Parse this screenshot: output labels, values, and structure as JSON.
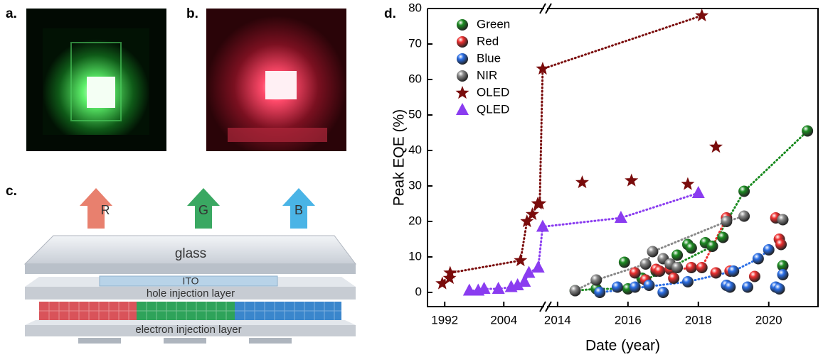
{
  "panel_labels": [
    "a.",
    "b.",
    "c.",
    "d."
  ],
  "diagram": {
    "arrows": [
      "R",
      "G",
      "B"
    ],
    "layers": [
      "glass",
      "ITO",
      "hole injection layer",
      "electron injection layer"
    ]
  },
  "chart_data": {
    "type": "scatter",
    "xlabel": "Date (year)",
    "ylabel": "Peak EQE (%)",
    "xlim": [
      1988.5,
      2021.4
    ],
    "xbreak": [
      2012.2,
      2013.7
    ],
    "xticks": [
      1992,
      2004,
      2014,
      2016,
      2018,
      2020
    ],
    "ylim": [
      -4,
      80
    ],
    "yticks": [
      0,
      10,
      20,
      30,
      40,
      50,
      60,
      70,
      80
    ],
    "legend": "top-left",
    "series": [
      {
        "name": "Green",
        "color": "#1c8c22",
        "marker": "sphere",
        "x": [
          2014.5,
          2015.1,
          2015.9,
          2016,
          2016.4,
          2016.8,
          2017.4,
          2017.7,
          2017.8,
          2018.2,
          2018.4,
          2018.7,
          2019.3,
          2020.4,
          2021.1
        ],
        "values": [
          0.5,
          1,
          8.5,
          1,
          4,
          6,
          10.5,
          13.5,
          12.5,
          14,
          13,
          15.5,
          28.5,
          7.5,
          45.5
        ],
        "connected": [
          0,
          1,
          3,
          10,
          12,
          14
        ]
      },
      {
        "name": "Red",
        "color": "#ee3030",
        "marker": "sphere",
        "x": [
          2016.2,
          2016.5,
          2016.8,
          2016.9,
          2017.2,
          2017.3,
          2017.8,
          2018.1,
          2018.5,
          2018.8,
          2018.9,
          2019.6,
          2020.2,
          2020.3,
          2020.35
        ],
        "values": [
          5.5,
          3.5,
          6.5,
          6,
          6.5,
          4,
          7,
          7,
          5.5,
          21,
          6,
          4.5,
          21,
          15,
          13.5
        ],
        "connected": [
          4,
          7,
          9
        ]
      },
      {
        "name": "Blue",
        "color": "#2a6ee6",
        "marker": "sphere",
        "x": [
          2015.2,
          2015.7,
          2016.2,
          2016.6,
          2017,
          2017.7,
          2018.8,
          2018.9,
          2019,
          2019.4,
          2019.7,
          2020,
          2020.2,
          2020.3,
          2020.4
        ],
        "values": [
          0,
          1.5,
          1.5,
          2,
          0,
          3,
          2,
          1.5,
          6,
          1.5,
          9.5,
          12,
          1.5,
          1,
          5
        ],
        "connected": [
          0,
          5,
          8,
          10,
          11
        ]
      },
      {
        "name": "NIR",
        "color": "#8a8a8a",
        "marker": "sphere",
        "x": [
          2014.5,
          2015.1,
          2016.5,
          2016.7,
          2017,
          2017.2,
          2017.4,
          2018.8,
          2019.3,
          2020.4
        ],
        "values": [
          0.5,
          3.5,
          8,
          11.5,
          9.5,
          8,
          7,
          20,
          21.5,
          20.5
        ],
        "connected": [
          0,
          1,
          2,
          3,
          7,
          8
        ]
      },
      {
        "name": "OLED",
        "color": "#7a0c0c",
        "marker": "star",
        "x": [
          1991.5,
          1993,
          1993.1,
          2007.4,
          2008.7,
          2009.8,
          2010.9,
          2011.3,
          2011.9,
          2014.7,
          2016.1,
          2017.7,
          2018.1,
          2018.5
        ],
        "values": [
          2.5,
          4,
          5.5,
          9,
          20,
          22,
          25,
          25,
          63,
          31,
          31.5,
          30.5,
          78,
          41
        ],
        "connected": [
          0,
          2,
          3,
          4,
          5,
          6,
          7,
          8,
          12
        ]
      },
      {
        "name": "QLED",
        "color": "#8a3cf0",
        "marker": "triangle",
        "x": [
          1997,
          1998.8,
          2000,
          2002.9,
          2005.5,
          2006.8,
          2008.2,
          2009.1,
          2011,
          2011.9,
          2015.8,
          2018
        ],
        "values": [
          0.5,
          0.5,
          1,
          1,
          1.5,
          2,
          3,
          5.5,
          7,
          18.5,
          21,
          28
        ],
        "connected": [
          0,
          1,
          2,
          3,
          4,
          5,
          6,
          7,
          8,
          9,
          10,
          11
        ]
      }
    ]
  }
}
